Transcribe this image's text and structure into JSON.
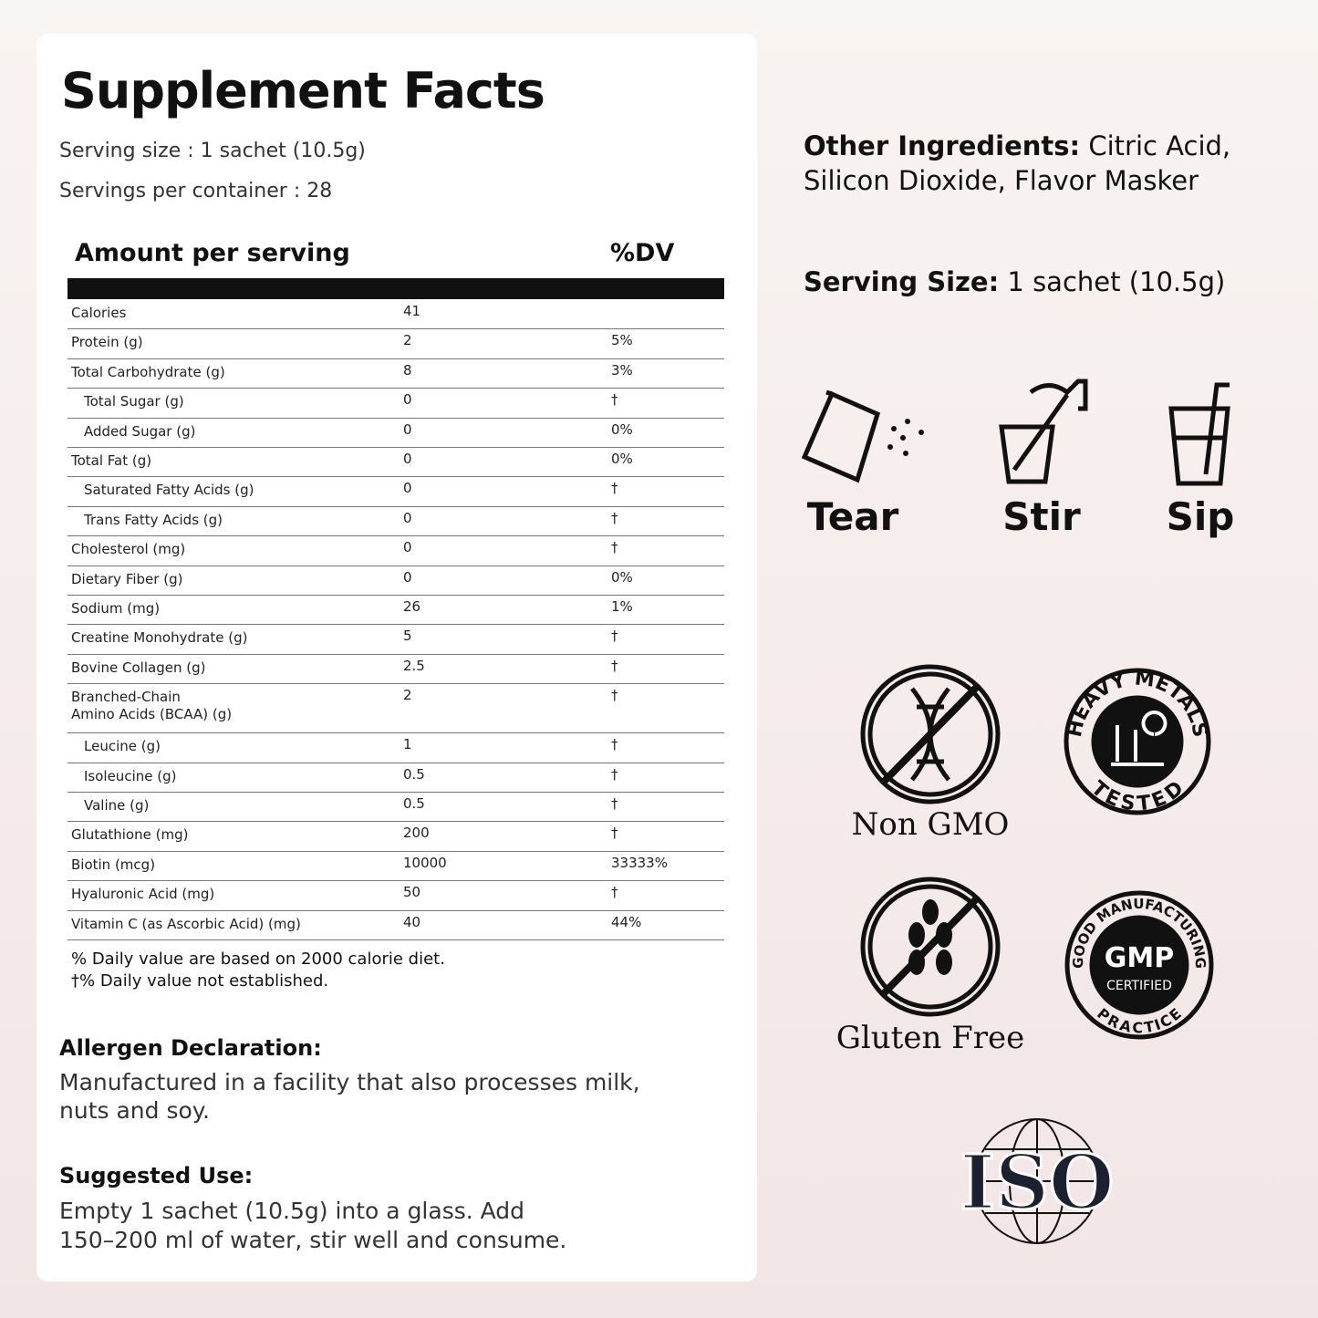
{
  "facts": {
    "title": "Supplement Facts",
    "serving_size": "Serving size : 1 sachet (10.5g)",
    "servings_per_container": "Servings per container : 28",
    "header": [
      "Amount per serving",
      "%DV"
    ],
    "rows": [
      [
        "Calories",
        41,
        null
      ],
      [
        "Protein (g)",
        2,
        "5%"
      ],
      [
        "Total Carbohydrate (g)",
        8,
        "3%"
      ],
      [
        "Total Sugar (g)",
        0,
        "†"
      ],
      [
        "Added Sugar (g)",
        0,
        "0%"
      ],
      [
        "Total Fat (g)",
        0,
        "0%"
      ],
      [
        "Saturated Fatty Acids (g)",
        0,
        "†"
      ],
      [
        "Trans Fatty Acids (g)",
        0,
        "†"
      ],
      [
        "Cholesterol (mg)",
        0,
        "†"
      ],
      [
        "Dietary Fiber (g)",
        0,
        "0%"
      ],
      [
        "Sodium (mg)",
        26,
        "1%"
      ],
      [
        "Creatine Monohydrate (g)",
        5,
        "†"
      ],
      [
        "Bovine Collagen (g)",
        2.5,
        "†"
      ],
      [
        "Branched-Chain\nAmino Acids (BCAA) (g)",
        2,
        "†"
      ],
      [
        "Leucine (g)",
        1,
        "†"
      ],
      [
        "Isoleucine (g)",
        0.5,
        "†"
      ],
      [
        "Valine (g)",
        0.5,
        "†"
      ],
      [
        "Glutathione (mg)",
        200,
        "†"
      ],
      [
        "Biotin (mcg)",
        10000,
        "33333%"
      ],
      [
        "Hyaluronic Acid (mg)",
        50,
        "†"
      ],
      [
        "Vitamin C (as Ascorbic Acid) (mg)",
        40,
        "44%"
      ]
    ],
    "footnotes": [
      "% Daily value are based on 2000 calorie diet.",
      "†% Daily value not established."
    ]
  },
  "allergen": {
    "heading": "Allergen Declaration:",
    "text": "Manufactured in a facility that also processes milk,\nnuts and soy."
  },
  "suggested_use": {
    "heading": "Suggested Use:",
    "text": "Empty 1 sachet (10.5g) into a glass. Add\n150–200 ml of water, stir well and consume."
  },
  "other_ingredients": {
    "label": "Other Ingredients:",
    "text": "Citric Acid,\nSilicon Dioxide, Flavor Masker"
  },
  "serving": {
    "label": "Serving Size:",
    "text": "1 sachet (10.5g)"
  },
  "steps": [
    "Tear",
    "Stir",
    "Sip"
  ],
  "badges": {
    "non_gmo": "Non GMO",
    "heavy_metals": {
      "top": "HEAVY METALS",
      "bottom": "TESTED"
    },
    "gluten_free": "Gluten Free",
    "gmp": {
      "top": "GOOD MANUFACTURING",
      "center": "GMP",
      "sub": "CERTIFIED",
      "bottom": "PRACTICE"
    },
    "iso": "ISO"
  }
}
